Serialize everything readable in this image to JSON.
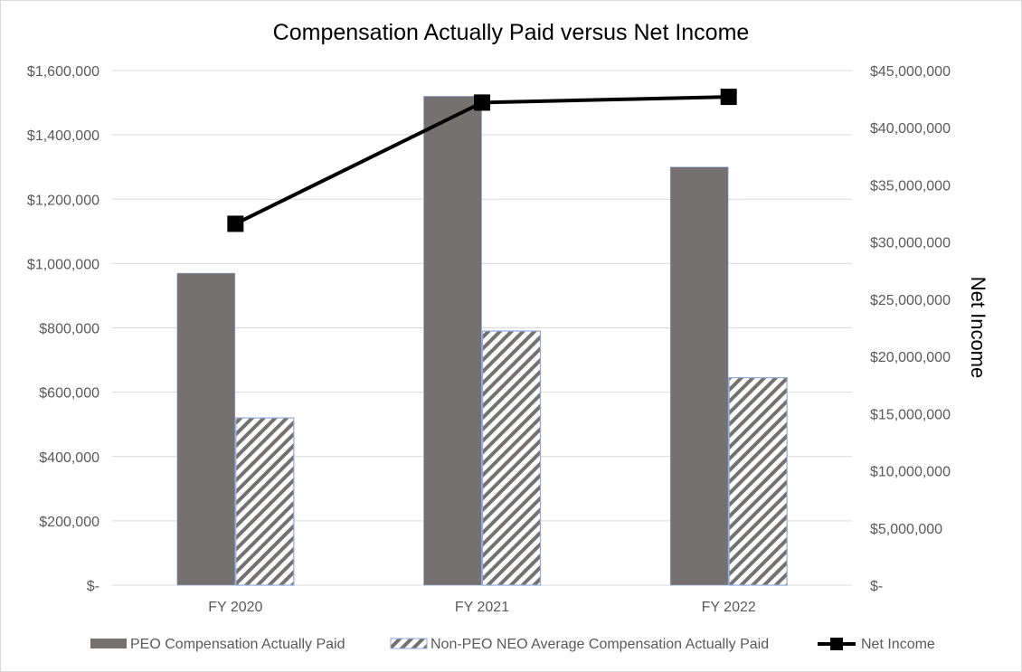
{
  "chart_data": {
    "type": "bar",
    "title": "Compensation Actually Paid versus Net Income",
    "categories": [
      "FY 2020",
      "FY 2021",
      "FY 2022"
    ],
    "series": [
      {
        "name": "PEO Compensation Actually Paid",
        "kind": "bar",
        "axis": "left",
        "pattern": "solid",
        "color": "#767171",
        "values": [
          970000,
          1520000,
          1300000
        ]
      },
      {
        "name": "Non-PEO NEO Average Compensation Actually Paid",
        "kind": "bar",
        "axis": "left",
        "pattern": "diagonal-hatch",
        "color": "#767171",
        "border_color": "#8faadc",
        "values": [
          520000,
          790000,
          645000
        ]
      },
      {
        "name": "Net Income",
        "kind": "line",
        "axis": "right",
        "marker": "square",
        "color": "#000000",
        "values": [
          31600000,
          42200000,
          42700000
        ]
      }
    ],
    "y_left": {
      "label": "",
      "ylim": [
        0,
        1600000
      ],
      "ticks": [
        0,
        200000,
        400000,
        600000,
        800000,
        1000000,
        1200000,
        1400000,
        1600000
      ],
      "tick_labels": [
        "$-",
        "$200,000",
        "$400,000",
        "$600,000",
        "$800,000",
        "$1,000,000",
        "$1,200,000",
        "$1,400,000",
        "$1,600,000"
      ]
    },
    "y_right": {
      "label": "Net Income",
      "ylim": [
        0,
        45000000
      ],
      "ticks": [
        0,
        5000000,
        10000000,
        15000000,
        20000000,
        25000000,
        30000000,
        35000000,
        40000000,
        45000000
      ],
      "tick_labels": [
        "$-",
        "$5,000,000",
        "$10,000,000",
        "$15,000,000",
        "$20,000,000",
        "$25,000,000",
        "$30,000,000",
        "$35,000,000",
        "$40,000,000",
        "$45,000,000"
      ]
    },
    "grid": true,
    "legend_position": "bottom"
  }
}
